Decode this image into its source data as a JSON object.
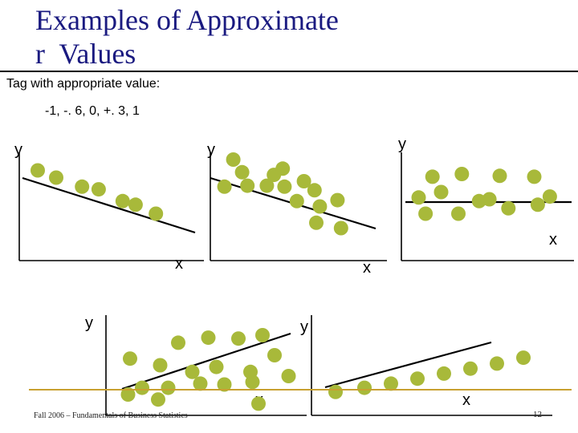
{
  "title_line1": "Examples of Approximate",
  "title_line2": "r  Values",
  "subtitle": "Tag with appropriate value:",
  "choices": "-1, -. 6, 0, +. 3, 1",
  "footer": "Fall 2006 – Fundamentals of Business Statistics",
  "page_number": "12",
  "colors": {
    "dot": "#a8b93a",
    "line": "#000000",
    "title": "#1a1a80",
    "gold_rule": "#c8a030"
  },
  "chart_data": [
    {
      "type": "scatter",
      "xlabel": "x",
      "ylabel": "y",
      "trendline": "negative steep",
      "points": [
        [
          1,
          10
        ],
        [
          2,
          9.2
        ],
        [
          3.4,
          8.2
        ],
        [
          4.3,
          7.9
        ],
        [
          5.6,
          6.6
        ],
        [
          6.3,
          6.2
        ],
        [
          7.4,
          5.2
        ]
      ]
    },
    {
      "type": "scatter",
      "xlabel": "x",
      "ylabel": "y",
      "trendline": "negative moderate",
      "points": [
        [
          1.3,
          11.2
        ],
        [
          0.8,
          8.2
        ],
        [
          1.8,
          9.8
        ],
        [
          2.1,
          8.3
        ],
        [
          3.2,
          8.3
        ],
        [
          3.6,
          9.5
        ],
        [
          4.1,
          10.2
        ],
        [
          4.2,
          8.2
        ],
        [
          5.3,
          8.8
        ],
        [
          5.9,
          7.8
        ],
        [
          4.9,
          6.6
        ],
        [
          6.2,
          6.0
        ],
        [
          7.2,
          6.7
        ],
        [
          6.0,
          4.2
        ],
        [
          7.4,
          3.6
        ]
      ]
    },
    {
      "type": "scatter",
      "xlabel": "x",
      "ylabel": "y",
      "trendline": "horizontal",
      "points": [
        [
          1.8,
          9.3
        ],
        [
          3.5,
          9.6
        ],
        [
          5.7,
          9.4
        ],
        [
          7.7,
          9.3
        ],
        [
          1.0,
          7.0
        ],
        [
          2.3,
          7.6
        ],
        [
          4.5,
          6.6
        ],
        [
          5.1,
          6.8
        ],
        [
          6.2,
          5.8
        ],
        [
          7.9,
          6.2
        ],
        [
          1.4,
          5.2
        ],
        [
          3.3,
          5.2
        ],
        [
          8.6,
          7.1
        ]
      ]
    },
    {
      "type": "scatter",
      "xlabel": "x",
      "ylabel": "y",
      "trendline": "positive weak",
      "points": [
        [
          1.2,
          6.8
        ],
        [
          1.8,
          3.3
        ],
        [
          2.7,
          6.0
        ],
        [
          3.1,
          3.3
        ],
        [
          3.6,
          8.7
        ],
        [
          4.3,
          5.2
        ],
        [
          4.7,
          3.8
        ],
        [
          5.1,
          9.3
        ],
        [
          5.5,
          5.8
        ],
        [
          5.9,
          3.7
        ],
        [
          6.6,
          9.2
        ],
        [
          7.2,
          5.2
        ],
        [
          7.3,
          4.0
        ],
        [
          7.8,
          9.6
        ],
        [
          8.4,
          7.2
        ],
        [
          9.1,
          4.7
        ],
        [
          1.1,
          2.5
        ],
        [
          2.6,
          1.9
        ],
        [
          7.6,
          1.4
        ]
      ]
    },
    {
      "type": "scatter",
      "xlabel": "x",
      "ylabel": "y",
      "trendline": "positive perfect",
      "points": [
        [
          1,
          2.8
        ],
        [
          2.2,
          3.3
        ],
        [
          3.3,
          3.8
        ],
        [
          4.4,
          4.4
        ],
        [
          5.5,
          5.0
        ],
        [
          6.6,
          5.6
        ],
        [
          7.7,
          6.2
        ],
        [
          8.8,
          6.9
        ]
      ]
    }
  ]
}
